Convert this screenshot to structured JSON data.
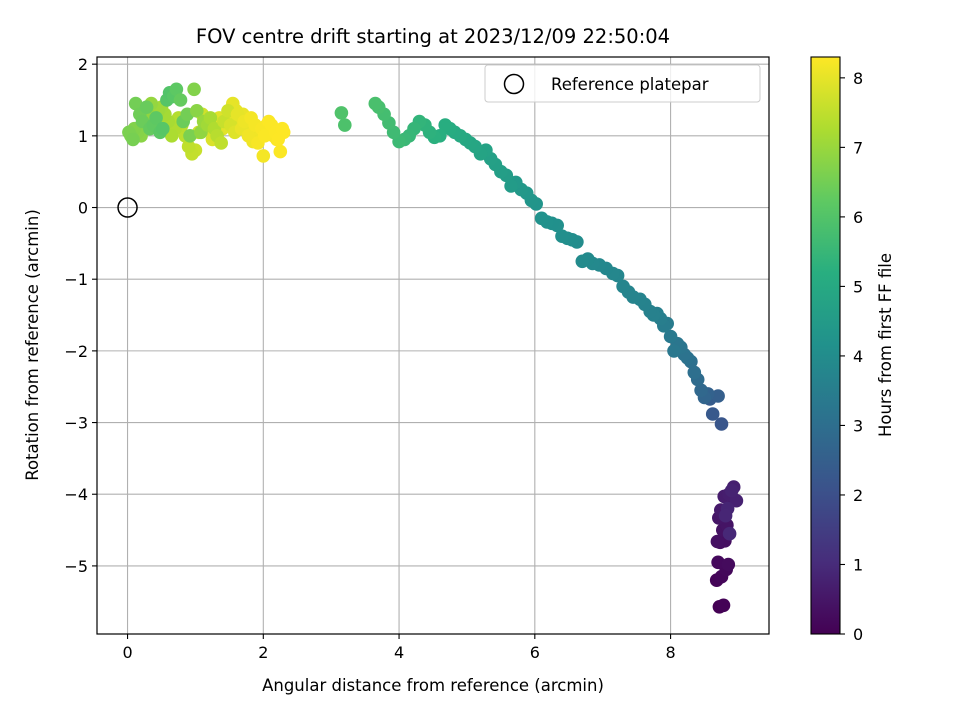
{
  "chart_data": {
    "type": "scatter",
    "title": "FOV centre drift starting at 2023/12/09 22:50:04",
    "xlabel": "Angular distance from reference (arcmin)",
    "ylabel": "Rotation from reference (arcmin)",
    "xlim": [
      -0.45,
      9.45
    ],
    "ylim": [
      -5.95,
      2.1
    ],
    "x_ticks": [
      0,
      2,
      4,
      6,
      8
    ],
    "y_ticks": [
      2,
      1,
      0,
      -1,
      -2,
      -3,
      -4,
      -5
    ],
    "grid": true,
    "legend": {
      "placement": "top-right",
      "entries": [
        "Reference platepar"
      ]
    },
    "reference_point": {
      "label": "Reference platepar",
      "x": 0,
      "y": 0
    },
    "colorbar": {
      "label": "Hours from first FF file",
      "colormap": "viridis",
      "range": [
        0,
        8.3
      ],
      "ticks": [
        0,
        1,
        2,
        3,
        4,
        5,
        6,
        7,
        8
      ]
    },
    "series": [
      {
        "x": [
          8.72,
          8.78,
          8.68,
          8.75,
          8.82,
          8.7,
          8.85,
          8.73,
          8.8,
          8.69,
          8.77,
          8.83,
          8.71,
          8.76,
          8.88,
          8.74,
          8.79,
          8.86,
          8.93,
          8.97,
          8.9,
          8.84,
          8.81,
          8.87,
          8.75,
          8.62,
          8.58,
          8.7,
          8.55,
          8.5,
          8.45,
          8.4,
          8.35,
          8.3,
          8.25,
          8.2,
          8.15,
          8.1,
          8.05,
          8.0,
          7.95,
          7.9,
          7.85,
          7.8,
          7.75,
          7.7,
          7.62,
          7.55,
          7.45,
          7.38,
          7.3,
          7.22,
          7.15,
          7.05,
          6.95,
          6.85,
          6.78,
          6.7,
          6.62,
          6.55,
          6.48,
          6.4,
          6.33,
          6.25,
          6.18,
          6.1,
          6.02,
          5.95,
          5.88,
          5.8,
          5.72,
          5.65,
          5.58,
          5.5,
          5.42,
          5.35,
          5.28,
          5.2,
          5.12,
          5.05,
          4.98,
          4.9,
          4.82,
          4.75,
          4.68,
          4.6,
          4.52,
          4.45,
          4.38,
          4.3,
          4.22,
          4.15,
          4.08,
          4.0,
          3.92,
          3.85,
          3.78,
          3.7,
          3.65,
          3.2,
          3.15,
          2.3,
          2.25,
          2.2,
          2.15,
          2.1,
          2.05,
          2.0,
          1.95,
          1.9,
          1.85,
          1.8,
          1.75,
          1.7,
          1.65,
          1.6,
          1.55,
          1.5,
          1.45,
          1.4,
          1.35,
          1.3,
          1.25,
          1.2,
          1.15,
          1.1,
          1.05,
          1.0,
          0.95,
          0.9,
          0.85,
          0.8,
          0.75,
          0.7,
          0.65,
          0.6,
          0.55,
          0.5,
          0.45,
          0.4,
          0.35,
          0.3,
          0.25,
          0.2,
          0.15,
          0.1,
          0.05,
          0.02,
          0.08,
          0.12,
          0.18,
          0.22,
          0.28,
          0.33,
          0.38,
          0.42,
          0.48,
          0.52,
          0.58,
          0.62,
          0.68,
          0.72,
          0.78,
          0.82,
          0.88,
          0.92,
          0.98,
          1.02,
          1.08,
          1.12,
          1.18,
          1.22,
          1.28,
          1.32,
          1.38,
          1.42,
          1.48,
          1.52,
          1.58,
          1.62,
          1.68,
          1.72,
          1.78,
          1.82,
          1.88,
          1.92,
          1.98,
          2.02,
          2.08,
          2.12,
          2.18,
          2.22,
          2.28
        ],
        "y": [
          -5.57,
          -5.55,
          -5.2,
          -5.15,
          -5.05,
          -4.95,
          -4.98,
          -4.67,
          -4.65,
          -4.66,
          -4.5,
          -4.43,
          -4.33,
          -4.28,
          -4.1,
          -4.22,
          -4.03,
          -4.0,
          -3.9,
          -4.09,
          -3.95,
          -4.2,
          -4.3,
          -4.55,
          -3.02,
          -2.88,
          -2.67,
          -2.63,
          -2.6,
          -2.65,
          -2.55,
          -2.4,
          -2.3,
          -2.15,
          -2.1,
          -2.05,
          -1.95,
          -1.9,
          -2.0,
          -1.8,
          -1.62,
          -1.65,
          -1.55,
          -1.48,
          -1.5,
          -1.45,
          -1.35,
          -1.28,
          -1.25,
          -1.18,
          -1.1,
          -0.95,
          -0.92,
          -0.85,
          -0.8,
          -0.78,
          -0.72,
          -0.75,
          -0.48,
          -0.45,
          -0.43,
          -0.4,
          -0.25,
          -0.22,
          -0.2,
          -0.15,
          0.05,
          0.1,
          0.2,
          0.25,
          0.35,
          0.3,
          0.45,
          0.5,
          0.6,
          0.68,
          0.8,
          0.75,
          0.85,
          0.9,
          0.95,
          1.0,
          1.05,
          1.1,
          1.15,
          1.0,
          0.98,
          1.05,
          1.15,
          1.2,
          1.1,
          1.0,
          0.95,
          0.92,
          1.05,
          1.18,
          1.3,
          1.4,
          1.45,
          1.15,
          1.32,
          1.05,
          0.78,
          0.95,
          1.0,
          1.1,
          1.15,
          0.72,
          1.05,
          1.0,
          0.92,
          1.1,
          1.2,
          1.3,
          1.25,
          1.35,
          1.45,
          1.2,
          1.15,
          1.1,
          1.25,
          1.05,
          0.95,
          1.1,
          1.2,
          1.3,
          1.05,
          0.8,
          0.75,
          0.85,
          1.0,
          1.15,
          1.25,
          1.1,
          1.0,
          1.2,
          1.3,
          1.4,
          1.35,
          1.25,
          1.45,
          1.3,
          1.15,
          1.0,
          1.05,
          1.1,
          1.0,
          1.05,
          0.95,
          1.45,
          1.3,
          1.2,
          1.4,
          1.1,
          1.15,
          1.25,
          1.05,
          1.1,
          1.5,
          1.6,
          1.55,
          1.65,
          1.5,
          1.2,
          1.3,
          1.0,
          1.65,
          1.35,
          1.05,
          1.2,
          1.15,
          1.25,
          1.1,
          1.0,
          0.9,
          1.2,
          1.35,
          1.15,
          1.05,
          1.3,
          1.1,
          1.2,
          1.0,
          1.25,
          1.15,
          0.9,
          1.1,
          1.0,
          1.2,
          1.15,
          1.05,
          0.95,
          1.1
        ],
        "hours": [
          0.0,
          0.04,
          0.08,
          0.12,
          0.16,
          0.2,
          0.24,
          0.28,
          0.32,
          0.36,
          0.4,
          0.44,
          0.48,
          0.52,
          0.56,
          0.6,
          0.64,
          0.68,
          0.72,
          0.76,
          0.8,
          0.84,
          0.88,
          0.92,
          2.2,
          2.3,
          2.4,
          2.5,
          2.6,
          2.7,
          2.8,
          2.9,
          3.0,
          3.05,
          3.1,
          3.15,
          3.2,
          3.25,
          3.3,
          3.35,
          3.4,
          3.45,
          3.5,
          3.55,
          3.6,
          3.62,
          3.65,
          3.68,
          3.7,
          3.72,
          3.75,
          3.78,
          3.8,
          3.83,
          3.86,
          3.89,
          3.92,
          3.95,
          3.98,
          4.01,
          4.04,
          4.07,
          4.1,
          4.13,
          4.16,
          4.19,
          4.25,
          4.3,
          4.35,
          4.4,
          4.45,
          4.5,
          4.55,
          4.6,
          4.65,
          4.7,
          4.75,
          4.8,
          4.85,
          4.9,
          4.95,
          5.0,
          5.05,
          5.1,
          5.15,
          5.2,
          5.25,
          5.3,
          5.35,
          5.4,
          5.45,
          5.5,
          5.55,
          5.6,
          5.65,
          5.7,
          5.75,
          5.8,
          5.85,
          5.9,
          5.95,
          8.3,
          8.28,
          8.26,
          8.24,
          8.22,
          8.2,
          8.18,
          8.16,
          8.14,
          8.12,
          8.1,
          8.08,
          8.06,
          8.04,
          8.02,
          8.0,
          7.98,
          7.96,
          7.94,
          7.92,
          7.9,
          7.85,
          7.8,
          7.75,
          7.7,
          7.65,
          7.6,
          7.55,
          7.5,
          7.45,
          7.4,
          7.35,
          7.3,
          7.25,
          7.2,
          7.15,
          7.1,
          7.05,
          7.0,
          6.95,
          6.9,
          6.85,
          6.8,
          6.75,
          6.7,
          6.65,
          6.6,
          6.55,
          6.5,
          6.45,
          6.4,
          6.35,
          6.3,
          6.25,
          6.2,
          6.15,
          6.1,
          6.05,
          6.0,
          6.1,
          6.2,
          6.3,
          6.4,
          6.5,
          6.6,
          6.7,
          6.8,
          6.9,
          7.0,
          7.1,
          7.2,
          7.3,
          7.4,
          7.5,
          7.6,
          7.7,
          7.8,
          7.9,
          8.0,
          8.05,
          8.1,
          8.15,
          8.18,
          8.2,
          8.22,
          8.24,
          8.26,
          8.27,
          8.28,
          8.29,
          8.3,
          8.3
        ]
      }
    ]
  }
}
